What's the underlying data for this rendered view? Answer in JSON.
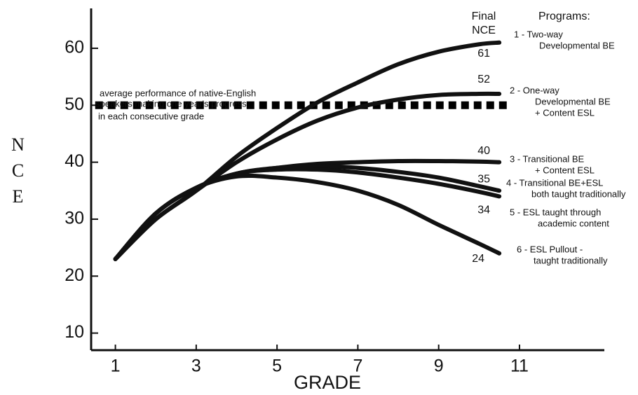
{
  "chart_data": {
    "type": "line",
    "xlabel": "GRADE",
    "ylabel": "NCE",
    "x": [
      1,
      2,
      3,
      4,
      5,
      6,
      7,
      8,
      9,
      10,
      10.5
    ],
    "xlim": [
      0.4,
      13.1
    ],
    "xticks": [
      1,
      3,
      5,
      7,
      9,
      11
    ],
    "ylim": [
      7,
      67
    ],
    "yticks": [
      10,
      20,
      30,
      40,
      50,
      60
    ],
    "final_header": [
      "Final",
      "NCE"
    ],
    "legend_title": "Programs:",
    "reference_line": {
      "y": 50,
      "x": [
        0.5,
        10.7
      ],
      "color": "#000000",
      "label_lines": [
        "average performance of native-English",
        "speakers making one year's progress",
        "in each consecutive grade"
      ]
    },
    "series": [
      {
        "name": [
          "1 - Two-way",
          "Developmental BE"
        ],
        "color": "#111111",
        "values": [
          23,
          30,
          35,
          41,
          46,
          50.5,
          54,
          57.2,
          59.4,
          60.7,
          61
        ]
      },
      {
        "name": [
          "2 - One-way",
          "Developmental BE",
          "+ Content ESL"
        ],
        "color": "#111111",
        "values": [
          23,
          30,
          35,
          40,
          44,
          47.3,
          49.6,
          51,
          51.8,
          52,
          52
        ]
      },
      {
        "name": [
          "3 - Transitional BE",
          "+ Content ESL"
        ],
        "color": "#111111",
        "values": [
          23,
          31,
          35.5,
          38,
          39,
          39.7,
          40,
          40.2,
          40.2,
          40.1,
          40
        ]
      },
      {
        "name": [
          "4 - Transitional BE+ESL",
          "both taught traditionally"
        ],
        "color": "#111111",
        "values": [
          23,
          31,
          35.5,
          38,
          39,
          39.3,
          39,
          38.3,
          37.3,
          35.8,
          35
        ]
      },
      {
        "name": [
          "5 - ESL taught through",
          "academic content"
        ],
        "color": "#111111",
        "values": [
          23,
          31,
          35.5,
          38,
          38.7,
          38.7,
          38.2,
          37.3,
          36.2,
          34.8,
          34
        ]
      },
      {
        "name": [
          "6 - ESL Pullout -",
          "taught traditionally"
        ],
        "color": "#111111",
        "values": [
          23,
          31,
          35.5,
          37.5,
          37.3,
          36.5,
          35,
          32.5,
          29,
          25.7,
          24
        ]
      }
    ]
  }
}
